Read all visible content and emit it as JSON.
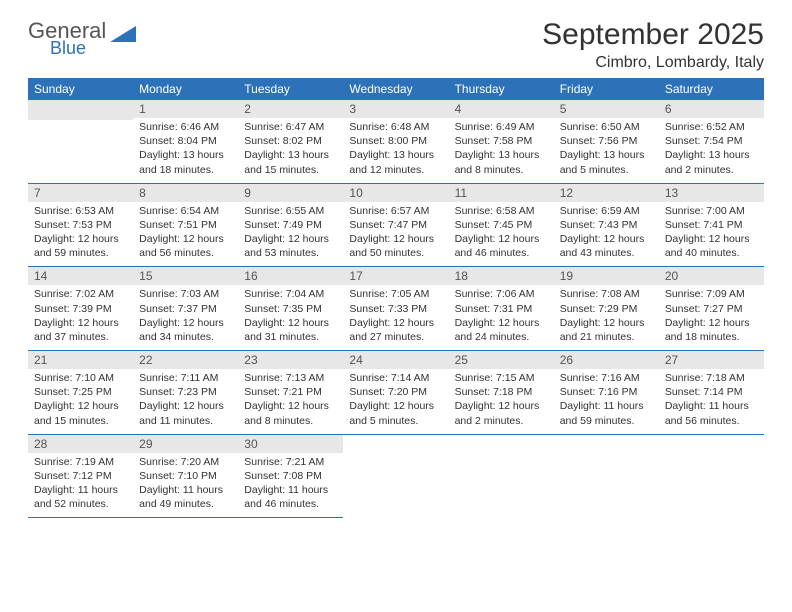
{
  "logo": {
    "line1": "General",
    "line2": "Blue"
  },
  "title": "September 2025",
  "subtitle": "Cimbro, Lombardy, Italy",
  "colors": {
    "accent": "#2d72b8",
    "daybar": "#e7e7e7",
    "text": "#333333",
    "bg": "#ffffff"
  },
  "fontsize": {
    "title": 30,
    "subtitle": 16,
    "header": 12,
    "daynum": 12,
    "body": 10.5
  },
  "headers": [
    "Sunday",
    "Monday",
    "Tuesday",
    "Wednesday",
    "Thursday",
    "Friday",
    "Saturday"
  ],
  "weeks": [
    [
      null,
      {
        "n": "1",
        "sr": "Sunrise: 6:46 AM",
        "ss": "Sunset: 8:04 PM",
        "dl": "Daylight: 13 hours and 18 minutes."
      },
      {
        "n": "2",
        "sr": "Sunrise: 6:47 AM",
        "ss": "Sunset: 8:02 PM",
        "dl": "Daylight: 13 hours and 15 minutes."
      },
      {
        "n": "3",
        "sr": "Sunrise: 6:48 AM",
        "ss": "Sunset: 8:00 PM",
        "dl": "Daylight: 13 hours and 12 minutes."
      },
      {
        "n": "4",
        "sr": "Sunrise: 6:49 AM",
        "ss": "Sunset: 7:58 PM",
        "dl": "Daylight: 13 hours and 8 minutes."
      },
      {
        "n": "5",
        "sr": "Sunrise: 6:50 AM",
        "ss": "Sunset: 7:56 PM",
        "dl": "Daylight: 13 hours and 5 minutes."
      },
      {
        "n": "6",
        "sr": "Sunrise: 6:52 AM",
        "ss": "Sunset: 7:54 PM",
        "dl": "Daylight: 13 hours and 2 minutes."
      }
    ],
    [
      {
        "n": "7",
        "sr": "Sunrise: 6:53 AM",
        "ss": "Sunset: 7:53 PM",
        "dl": "Daylight: 12 hours and 59 minutes."
      },
      {
        "n": "8",
        "sr": "Sunrise: 6:54 AM",
        "ss": "Sunset: 7:51 PM",
        "dl": "Daylight: 12 hours and 56 minutes."
      },
      {
        "n": "9",
        "sr": "Sunrise: 6:55 AM",
        "ss": "Sunset: 7:49 PM",
        "dl": "Daylight: 12 hours and 53 minutes."
      },
      {
        "n": "10",
        "sr": "Sunrise: 6:57 AM",
        "ss": "Sunset: 7:47 PM",
        "dl": "Daylight: 12 hours and 50 minutes."
      },
      {
        "n": "11",
        "sr": "Sunrise: 6:58 AM",
        "ss": "Sunset: 7:45 PM",
        "dl": "Daylight: 12 hours and 46 minutes."
      },
      {
        "n": "12",
        "sr": "Sunrise: 6:59 AM",
        "ss": "Sunset: 7:43 PM",
        "dl": "Daylight: 12 hours and 43 minutes."
      },
      {
        "n": "13",
        "sr": "Sunrise: 7:00 AM",
        "ss": "Sunset: 7:41 PM",
        "dl": "Daylight: 12 hours and 40 minutes."
      }
    ],
    [
      {
        "n": "14",
        "sr": "Sunrise: 7:02 AM",
        "ss": "Sunset: 7:39 PM",
        "dl": "Daylight: 12 hours and 37 minutes."
      },
      {
        "n": "15",
        "sr": "Sunrise: 7:03 AM",
        "ss": "Sunset: 7:37 PM",
        "dl": "Daylight: 12 hours and 34 minutes."
      },
      {
        "n": "16",
        "sr": "Sunrise: 7:04 AM",
        "ss": "Sunset: 7:35 PM",
        "dl": "Daylight: 12 hours and 31 minutes."
      },
      {
        "n": "17",
        "sr": "Sunrise: 7:05 AM",
        "ss": "Sunset: 7:33 PM",
        "dl": "Daylight: 12 hours and 27 minutes."
      },
      {
        "n": "18",
        "sr": "Sunrise: 7:06 AM",
        "ss": "Sunset: 7:31 PM",
        "dl": "Daylight: 12 hours and 24 minutes."
      },
      {
        "n": "19",
        "sr": "Sunrise: 7:08 AM",
        "ss": "Sunset: 7:29 PM",
        "dl": "Daylight: 12 hours and 21 minutes."
      },
      {
        "n": "20",
        "sr": "Sunrise: 7:09 AM",
        "ss": "Sunset: 7:27 PM",
        "dl": "Daylight: 12 hours and 18 minutes."
      }
    ],
    [
      {
        "n": "21",
        "sr": "Sunrise: 7:10 AM",
        "ss": "Sunset: 7:25 PM",
        "dl": "Daylight: 12 hours and 15 minutes."
      },
      {
        "n": "22",
        "sr": "Sunrise: 7:11 AM",
        "ss": "Sunset: 7:23 PM",
        "dl": "Daylight: 12 hours and 11 minutes."
      },
      {
        "n": "23",
        "sr": "Sunrise: 7:13 AM",
        "ss": "Sunset: 7:21 PM",
        "dl": "Daylight: 12 hours and 8 minutes."
      },
      {
        "n": "24",
        "sr": "Sunrise: 7:14 AM",
        "ss": "Sunset: 7:20 PM",
        "dl": "Daylight: 12 hours and 5 minutes."
      },
      {
        "n": "25",
        "sr": "Sunrise: 7:15 AM",
        "ss": "Sunset: 7:18 PM",
        "dl": "Daylight: 12 hours and 2 minutes."
      },
      {
        "n": "26",
        "sr": "Sunrise: 7:16 AM",
        "ss": "Sunset: 7:16 PM",
        "dl": "Daylight: 11 hours and 59 minutes."
      },
      {
        "n": "27",
        "sr": "Sunrise: 7:18 AM",
        "ss": "Sunset: 7:14 PM",
        "dl": "Daylight: 11 hours and 56 minutes."
      }
    ],
    [
      {
        "n": "28",
        "sr": "Sunrise: 7:19 AM",
        "ss": "Sunset: 7:12 PM",
        "dl": "Daylight: 11 hours and 52 minutes."
      },
      {
        "n": "29",
        "sr": "Sunrise: 7:20 AM",
        "ss": "Sunset: 7:10 PM",
        "dl": "Daylight: 11 hours and 49 minutes."
      },
      {
        "n": "30",
        "sr": "Sunrise: 7:21 AM",
        "ss": "Sunset: 7:08 PM",
        "dl": "Daylight: 11 hours and 46 minutes."
      },
      null,
      null,
      null,
      null
    ]
  ]
}
